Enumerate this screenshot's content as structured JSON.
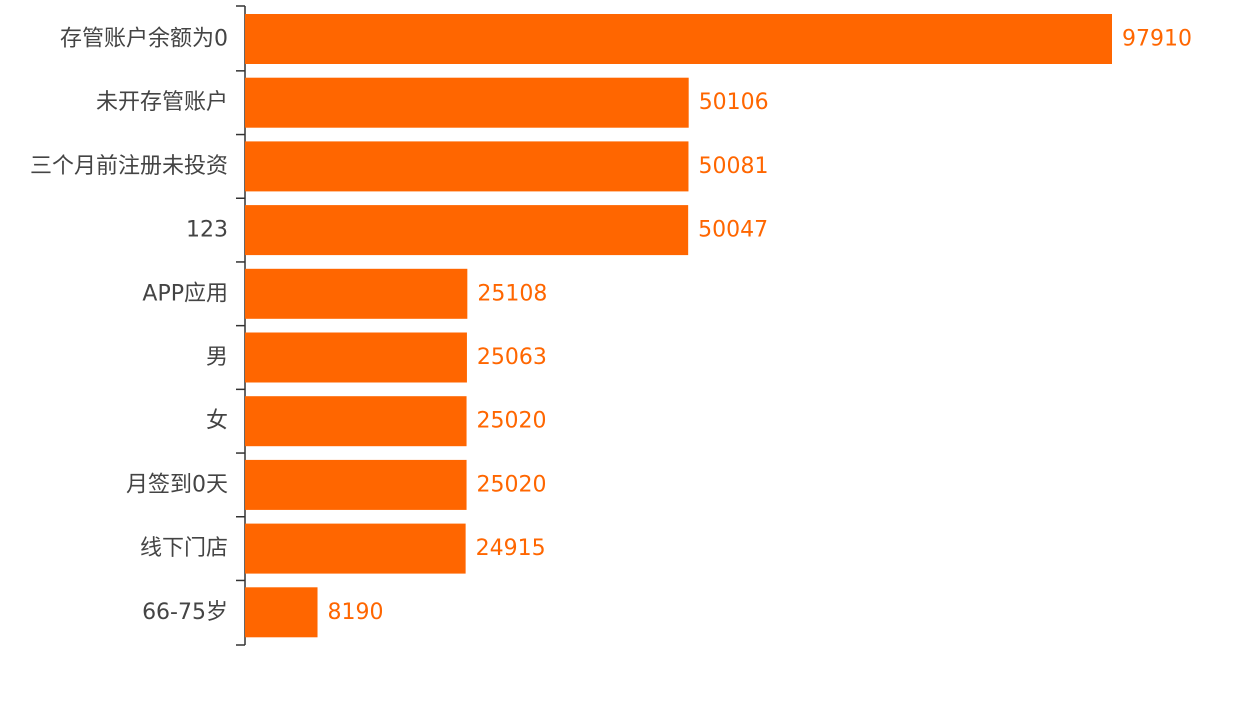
{
  "chart_data": {
    "type": "bar",
    "orientation": "horizontal",
    "title": "",
    "xlabel": "",
    "ylabel": "",
    "categories": [
      "存管账户余额为0",
      "未开存管账户",
      "三个月前注册未投资",
      "123",
      "APP应用",
      "男",
      "女",
      "月签到0天",
      "线下门店",
      "66-75岁"
    ],
    "values": [
      97910,
      50106,
      50081,
      50047,
      25108,
      25063,
      25020,
      25020,
      24915,
      8190
    ],
    "xlim": [
      0,
      97910
    ],
    "grid": false,
    "legend": "none",
    "bar_color": "#FF6600",
    "label_color": "#FF6600",
    "axis_color": "#333333"
  }
}
